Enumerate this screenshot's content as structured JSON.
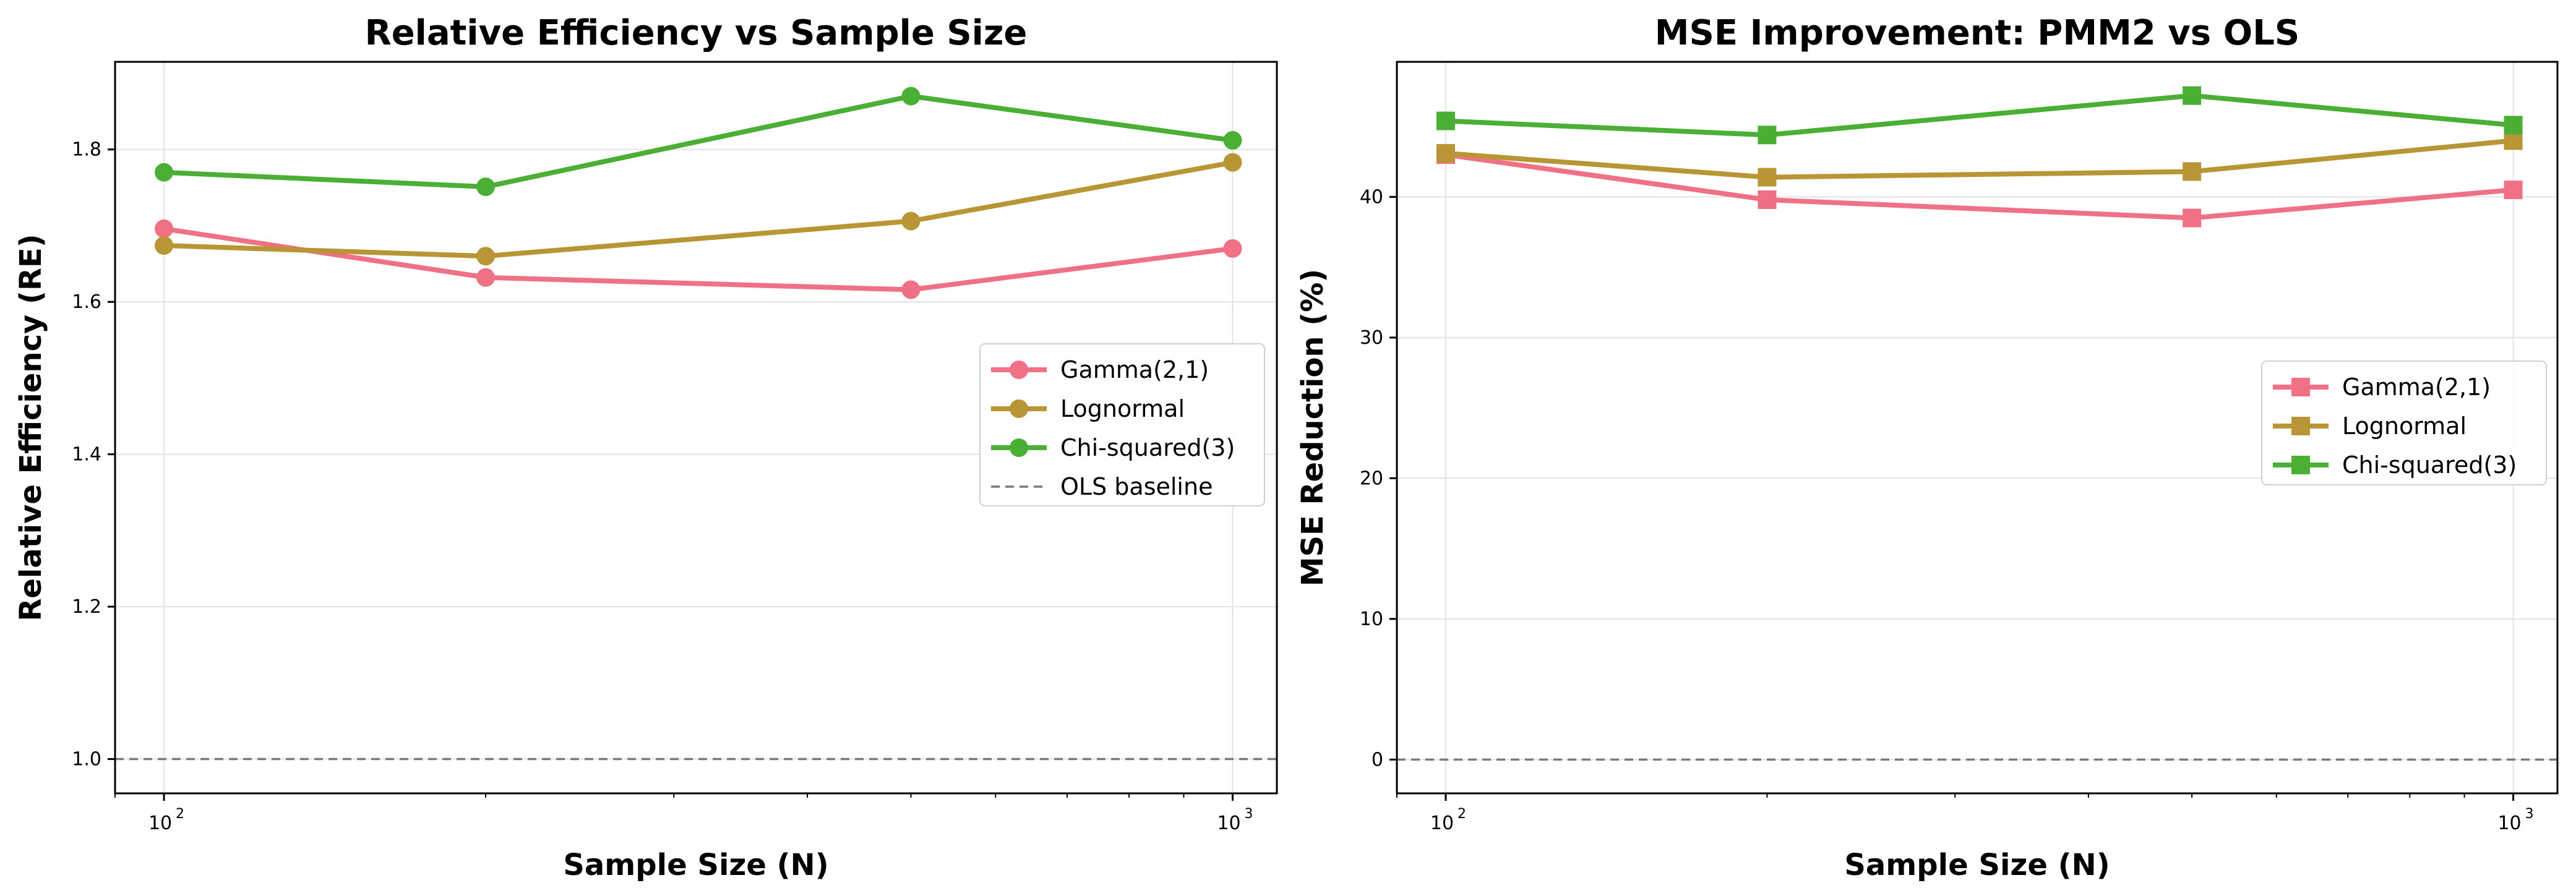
{
  "chart_data": [
    {
      "type": "line",
      "title": "Relative Efficiency vs Sample Size",
      "xlabel": "Sample Size (N)",
      "ylabel": "Relative Efficiency (RE)",
      "xscale": "log",
      "xlim": [
        90,
        1100
      ],
      "ylim": [
        0.955,
        1.915
      ],
      "x": [
        100,
        200,
        500,
        1000
      ],
      "xticks": [
        100,
        1000
      ],
      "xtick_labels": [
        {
          "base": "10",
          "exp": "2"
        },
        {
          "base": "10",
          "exp": "3"
        }
      ],
      "yticks": [
        1.0,
        1.2,
        1.4,
        1.6,
        1.8
      ],
      "ytick_labels": [
        "1.0",
        "1.2",
        "1.4",
        "1.6",
        "1.8"
      ],
      "marker": "circle",
      "grid": true,
      "legend_position": "center-right",
      "series": [
        {
          "name": "Gamma(2,1)",
          "color": "#f07185",
          "values": [
            1.696,
            1.632,
            1.616,
            1.67
          ]
        },
        {
          "name": "Lognormal",
          "color": "#b89535",
          "values": [
            1.674,
            1.66,
            1.706,
            1.783
          ]
        },
        {
          "name": "Chi-squared(3)",
          "color": "#4aaf34",
          "values": [
            1.77,
            1.751,
            1.87,
            1.812
          ]
        }
      ],
      "baseline": {
        "name": "OLS baseline",
        "value": 1.0,
        "color": "#7a7a7a"
      }
    },
    {
      "type": "line",
      "title": "MSE Improvement: PMM2 vs OLS",
      "xlabel": "Sample Size (N)",
      "ylabel": "MSE Reduction (%)",
      "xscale": "log",
      "xlim": [
        90,
        1100
      ],
      "ylim": [
        -2.4,
        49.6
      ],
      "x": [
        100,
        200,
        500,
        1000
      ],
      "xticks": [
        100,
        1000
      ],
      "xtick_labels": [
        {
          "base": "10",
          "exp": "2"
        },
        {
          "base": "10",
          "exp": "3"
        }
      ],
      "yticks": [
        0,
        10,
        20,
        30,
        40
      ],
      "ytick_labels": [
        "0",
        "10",
        "20",
        "30",
        "40"
      ],
      "marker": "square",
      "grid": true,
      "legend_position": "center-right",
      "series": [
        {
          "name": "Gamma(2,1)",
          "color": "#f07185",
          "values": [
            43.0,
            39.8,
            38.5,
            40.5
          ]
        },
        {
          "name": "Lognormal",
          "color": "#b89535",
          "values": [
            43.1,
            41.4,
            41.8,
            44.0
          ]
        },
        {
          "name": "Chi-squared(3)",
          "color": "#4aaf34",
          "values": [
            45.4,
            44.4,
            47.2,
            45.1
          ]
        }
      ],
      "baseline": {
        "value": 0,
        "color": "#7a7a7a"
      }
    }
  ]
}
